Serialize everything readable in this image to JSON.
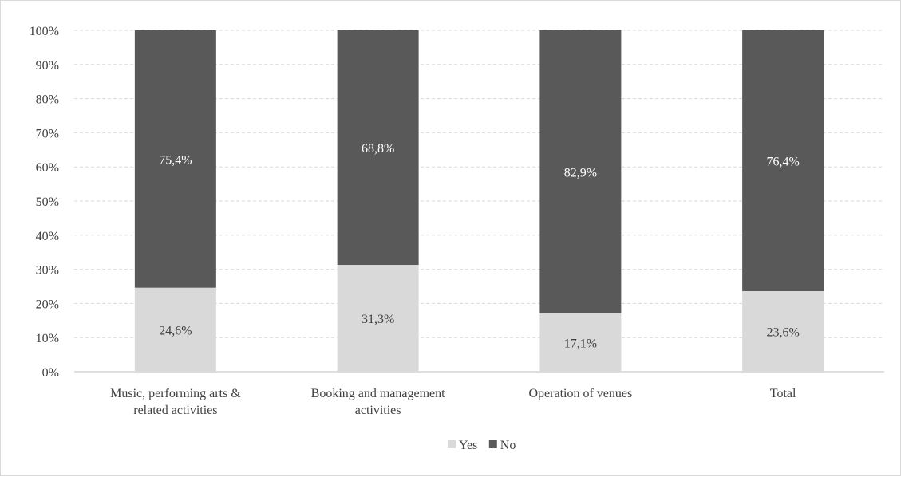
{
  "chart_data": {
    "type": "bar",
    "stacked": true,
    "percent_stacked": true,
    "categories": [
      [
        "Music, performing arts &",
        "related activities"
      ],
      [
        "Booking and management",
        "activities"
      ],
      [
        "Operation of venues"
      ],
      [
        "Total"
      ]
    ],
    "series": [
      {
        "name": "Yes",
        "values": [
          24.6,
          31.3,
          17.1,
          23.6
        ],
        "labels": [
          "24,6%",
          "31,3%",
          "17,1%",
          "23,6%"
        ],
        "color": "#d9d9d9",
        "label_color": "#404040"
      },
      {
        "name": "No",
        "values": [
          75.4,
          68.8,
          82.9,
          76.4
        ],
        "labels": [
          "75,4%",
          "68,8%",
          "82,9%",
          "76,4%"
        ],
        "color": "#595959",
        "label_color": "#ffffff"
      }
    ],
    "yticks": [
      "0%",
      "10%",
      "20%",
      "30%",
      "40%",
      "50%",
      "60%",
      "70%",
      "80%",
      "90%",
      "100%"
    ],
    "ylim": [
      0,
      100
    ],
    "grid": true,
    "legend": "bottom"
  }
}
